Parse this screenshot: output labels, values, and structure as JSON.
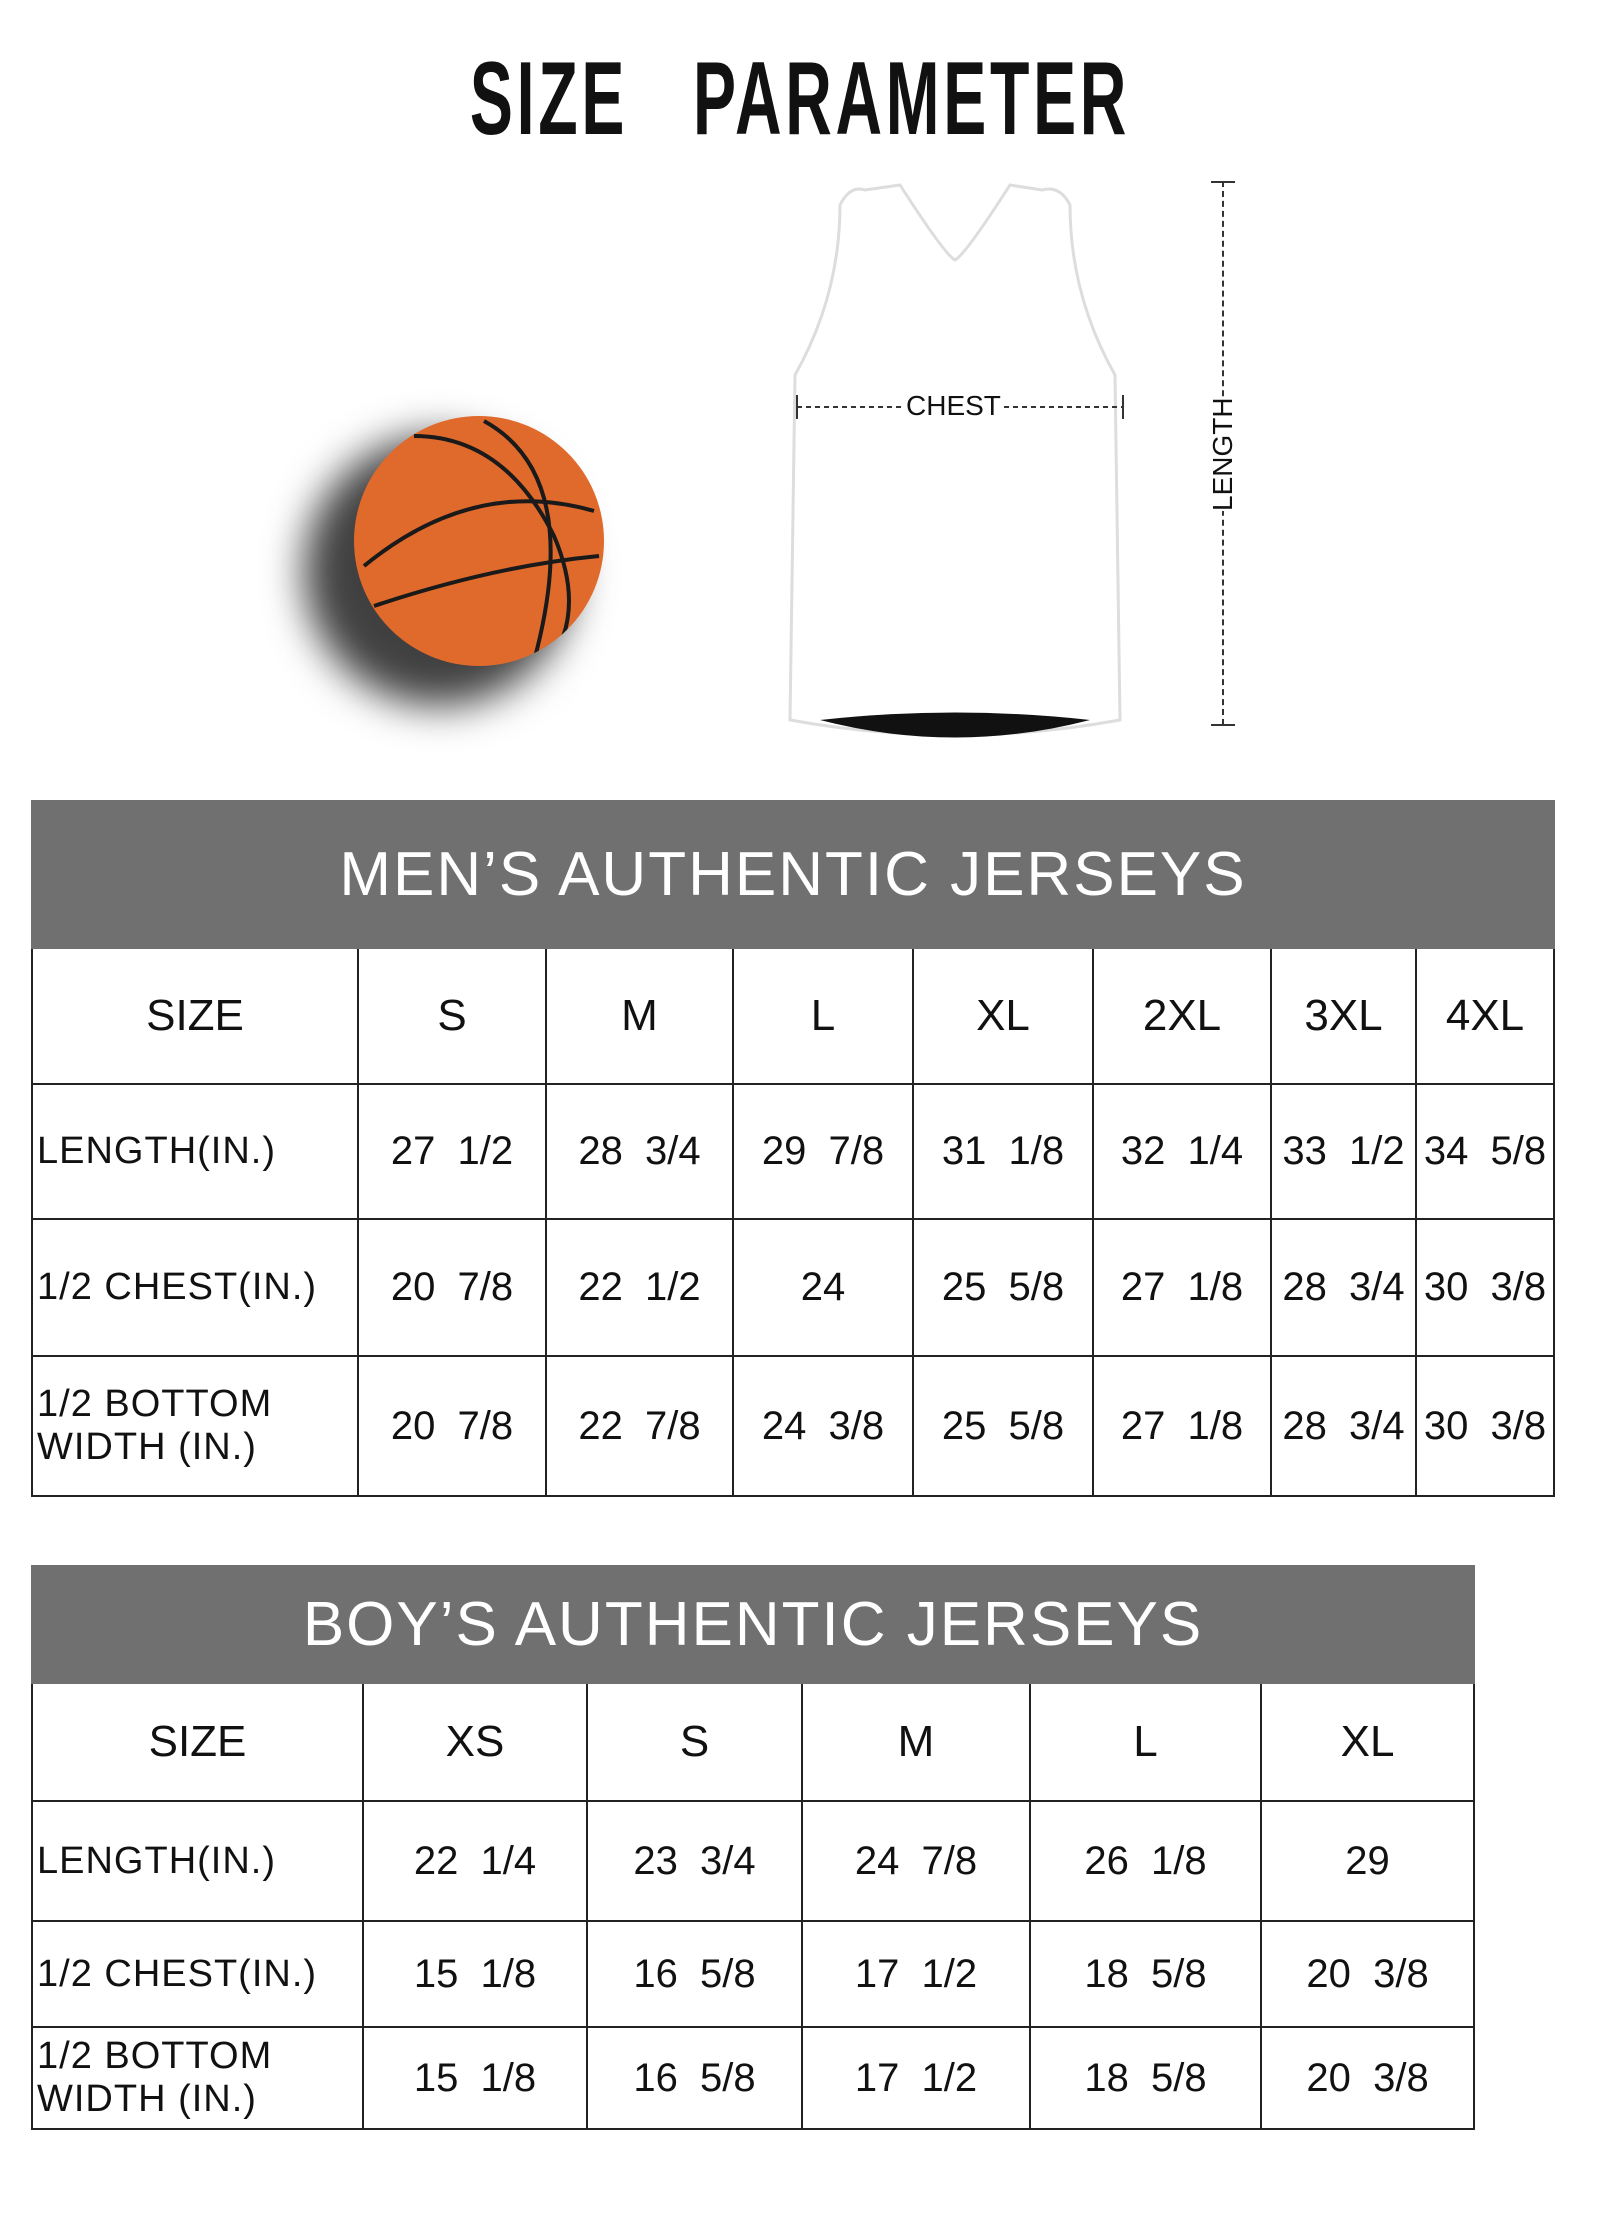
{
  "title": "SIZE   PARAMETER",
  "diagram": {
    "chest_label": "CHEST",
    "length_label": "LENGTH",
    "ball_color": "#e06a2c"
  },
  "colors": {
    "header_bg": "#707070",
    "header_text": "#ffffff"
  },
  "mens": {
    "heading": "MEN’S AUTHENTIC JERSEYS",
    "size_label": "SIZE",
    "sizes": [
      "S",
      "M",
      "L",
      "XL",
      "2XL",
      "3XL",
      "4XL"
    ],
    "rows": [
      {
        "label": "LENGTH(IN.)",
        "values": [
          "27  1/2",
          "28  3/4",
          "29  7/8",
          "31  1/8",
          "32  1/4",
          "33  1/2",
          "34  5/8"
        ]
      },
      {
        "label": "1/2 CHEST(IN.)",
        "values": [
          "20  7/8",
          "22  1/2",
          "24",
          "25  5/8",
          "27  1/8",
          "28  3/4",
          "30  3/8"
        ]
      },
      {
        "label": "1/2 BOTTOM WIDTH  (IN.)",
        "values": [
          "20  7/8",
          "22  7/8",
          "24  3/8",
          "25  5/8",
          "27  1/8",
          "28  3/4",
          "30  3/8"
        ]
      }
    ]
  },
  "boys": {
    "heading": "BOY’S AUTHENTIC JERSEYS",
    "size_label": "SIZE",
    "sizes": [
      "XS",
      "S",
      "M",
      "L",
      "XL"
    ],
    "rows": [
      {
        "label": "LENGTH(IN.)",
        "values": [
          "22  1/4",
          "23  3/4",
          "24  7/8",
          "26  1/8",
          "29"
        ]
      },
      {
        "label": "1/2 CHEST(IN.)",
        "values": [
          "15  1/8",
          "16  5/8",
          "17  1/2",
          "18  5/8",
          "20  3/8"
        ]
      },
      {
        "label": "1/2 BOTTOM WIDTH  (IN.)",
        "values": [
          "15  1/8",
          "16  5/8",
          "17  1/2",
          "18  5/8",
          "20  3/8"
        ]
      }
    ]
  }
}
